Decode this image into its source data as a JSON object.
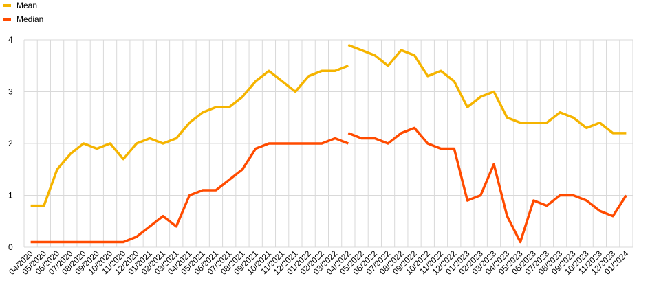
{
  "chart_data": {
    "type": "line",
    "categories": [
      "04/2020",
      "05/2020",
      "06/2020",
      "07/2020",
      "08/2020",
      "09/2020",
      "10/2020",
      "11/2020",
      "12/2020",
      "01/2021",
      "02/2021",
      "03/2021",
      "04/2021",
      "05/2021",
      "06/2021",
      "07/2021",
      "08/2021",
      "09/2021",
      "10/2021",
      "11/2021",
      "12/2021",
      "01/2022",
      "02/2022",
      "03/2022",
      "04/2022",
      "05/2022",
      "06/2022",
      "07/2022",
      "08/2022",
      "09/2022",
      "10/2022",
      "11/2022",
      "12/2022",
      "01/2023",
      "02/2023",
      "03/2023",
      "04/2023",
      "05/2023",
      "06/2023",
      "07/2023",
      "08/2023",
      "09/2023",
      "10/2023",
      "11/2023",
      "12/2023",
      "01/2024"
    ],
    "series": [
      {
        "name": "Mean",
        "color": "#f5b400",
        "values": [
          0.8,
          0.8,
          1.5,
          1.8,
          2.0,
          1.9,
          2.0,
          1.7,
          2.0,
          2.1,
          2.0,
          2.1,
          2.4,
          2.6,
          2.7,
          2.7,
          2.9,
          3.2,
          3.4,
          3.2,
          3.0,
          3.3,
          3.4,
          3.4,
          3.5,
          null,
          null,
          null,
          null,
          null,
          null,
          null,
          null,
          null,
          null,
          null,
          null,
          null,
          null,
          null,
          null,
          null,
          null,
          null,
          null,
          null
        ],
        "values_revised": [
          null,
          null,
          null,
          null,
          null,
          null,
          null,
          null,
          null,
          null,
          null,
          null,
          null,
          null,
          null,
          null,
          null,
          null,
          null,
          null,
          null,
          null,
          null,
          null,
          3.9,
          3.8,
          3.7,
          3.5,
          3.8,
          3.7,
          3.3,
          3.4,
          3.2,
          2.7,
          2.9,
          3.0,
          2.5,
          2.4,
          2.4,
          2.4,
          2.6,
          2.5,
          2.3,
          2.4,
          2.2,
          2.2
        ]
      },
      {
        "name": "Median",
        "color": "#ff4b00",
        "values": [
          0.1,
          0.1,
          0.1,
          0.1,
          0.1,
          0.1,
          0.1,
          0.1,
          0.2,
          0.4,
          0.6,
          0.4,
          1.0,
          1.1,
          1.1,
          1.3,
          1.5,
          1.9,
          2.0,
          2.0,
          2.0,
          2.0,
          2.0,
          2.1,
          2.0,
          null,
          null,
          null,
          null,
          null,
          null,
          null,
          null,
          null,
          null,
          null,
          null,
          null,
          null,
          null,
          null,
          null,
          null,
          null,
          null,
          null
        ],
        "values_revised": [
          null,
          null,
          null,
          null,
          null,
          null,
          null,
          null,
          null,
          null,
          null,
          null,
          null,
          null,
          null,
          null,
          null,
          null,
          null,
          null,
          null,
          null,
          null,
          null,
          2.2,
          2.1,
          2.1,
          2.0,
          2.2,
          2.3,
          2.0,
          1.9,
          1.9,
          0.9,
          1.0,
          1.6,
          0.6,
          0.1,
          0.9,
          0.8,
          1.0,
          1.0,
          0.9,
          0.7,
          0.6,
          1.0
        ]
      }
    ],
    "ylim": [
      0,
      4
    ],
    "yticks": [
      0,
      1,
      2,
      3,
      4
    ],
    "grid": true
  }
}
